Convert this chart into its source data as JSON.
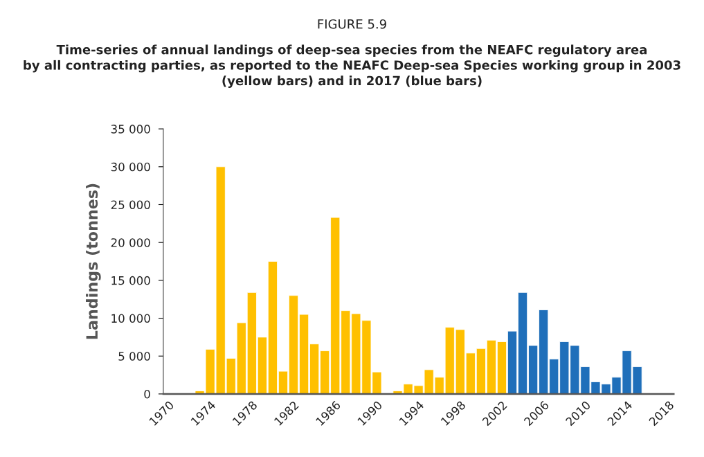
{
  "chart_data": {
    "type": "bar",
    "title": "FIGURE 5.9",
    "subtitle": "Time-series of annual landings of deep-sea species from the NEAFC regulatory area\nby all contracting parties, as reported to the NEAFC Deep-sea Species working group in 2003\n(yellow bars) and in 2017 (blue bars)",
    "ylabel": "Landings (tonnes)",
    "series": [
      {
        "color": "#ffc000",
        "x": [
          1973,
          1974,
          1975,
          1976,
          1977,
          1978,
          1979,
          1980,
          1981,
          1982,
          1983,
          1984,
          1985,
          1986,
          1987,
          1988,
          1989,
          1990,
          1992,
          1993,
          1994,
          1995,
          1996,
          1997,
          1998,
          1999,
          2000,
          2001,
          2002
        ],
        "values": [
          400,
          5900,
          30000,
          4700,
          9400,
          13400,
          7500,
          17500,
          3000,
          13000,
          10500,
          6600,
          5700,
          23300,
          11000,
          10600,
          9700,
          2900,
          400,
          1300,
          1100,
          3200,
          2200,
          8800,
          8500,
          5400,
          6000,
          7100,
          6900
        ]
      },
      {
        "color": "#1f6fba",
        "x": [
          2003,
          2004,
          2005,
          2006,
          2007,
          2008,
          2009,
          2010,
          2011,
          2012,
          2013,
          2014,
          2015
        ],
        "values": [
          8300,
          13400,
          6400,
          11100,
          4600,
          6900,
          6400,
          3600,
          1600,
          1300,
          2200,
          5700,
          3600
        ]
      }
    ],
    "xlim": [
      1969.5,
      2018.5
    ],
    "xticks": [
      1970,
      1974,
      1978,
      1982,
      1986,
      1990,
      1994,
      1998,
      2002,
      2006,
      2010,
      2014,
      2018
    ],
    "ylim": [
      0,
      35000
    ],
    "yticks": [
      {
        "value": 0,
        "label": "0"
      },
      {
        "value": 5000,
        "label": "5 000"
      },
      {
        "value": 10000,
        "label": "10 000"
      },
      {
        "value": 15000,
        "label": "15 000"
      },
      {
        "value": 20000,
        "label": "20 000"
      },
      {
        "value": 25000,
        "label": "25 000"
      },
      {
        "value": 30000,
        "label": "30 000"
      },
      {
        "value": 35000,
        "label": "35 000"
      }
    ],
    "grid": false,
    "legend": false
  }
}
